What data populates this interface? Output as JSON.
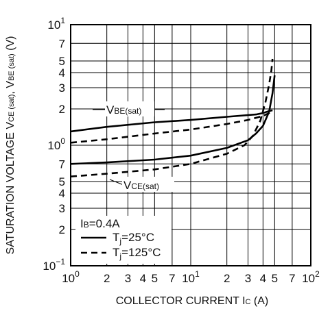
{
  "chart_data": {
    "type": "line",
    "title": "",
    "xlabel": "COLLECTOR CURRENT IC (A)",
    "ylabel": "SATURATION VOLTAGE VCE (sat), VBE (sat) (V)",
    "xscale": "log",
    "yscale": "log",
    "xlim": [
      1,
      100
    ],
    "ylim": [
      0.1,
      10
    ],
    "grid": true,
    "x_ticks": [
      {
        "v": 1,
        "base": "10",
        "exp": "0"
      },
      {
        "v": 2,
        "base": "2",
        "exp": ""
      },
      {
        "v": 3,
        "base": "3",
        "exp": ""
      },
      {
        "v": 4,
        "base": "4",
        "exp": ""
      },
      {
        "v": 5,
        "base": "5",
        "exp": ""
      },
      {
        "v": 7,
        "base": "7",
        "exp": ""
      },
      {
        "v": 10,
        "base": "10",
        "exp": "1"
      },
      {
        "v": 20,
        "base": "2",
        "exp": ""
      },
      {
        "v": 30,
        "base": "3",
        "exp": ""
      },
      {
        "v": 40,
        "base": "4",
        "exp": ""
      },
      {
        "v": 50,
        "base": "5",
        "exp": ""
      },
      {
        "v": 70,
        "base": "7",
        "exp": ""
      },
      {
        "v": 100,
        "base": "10",
        "exp": "2"
      }
    ],
    "y_ticks": [
      {
        "v": 10,
        "base": "10",
        "exp": "1"
      },
      {
        "v": 7,
        "base": "7",
        "exp": ""
      },
      {
        "v": 5,
        "base": "5",
        "exp": ""
      },
      {
        "v": 4,
        "base": "4",
        "exp": ""
      },
      {
        "v": 3,
        "base": "3",
        "exp": ""
      },
      {
        "v": 2,
        "base": "2",
        "exp": ""
      },
      {
        "v": 1,
        "base": "10",
        "exp": "0"
      },
      {
        "v": 0.7,
        "base": "7",
        "exp": ""
      },
      {
        "v": 0.5,
        "base": "5",
        "exp": ""
      },
      {
        "v": 0.4,
        "base": "4",
        "exp": ""
      },
      {
        "v": 0.3,
        "base": "3",
        "exp": ""
      },
      {
        "v": 0.2,
        "base": "2",
        "exp": ""
      },
      {
        "v": 0.1,
        "base": "10",
        "exp": "−1"
      }
    ],
    "series": [
      {
        "group": "VBE(sat)",
        "condition": "Tj=25°C",
        "style": "solid",
        "points": [
          [
            1,
            1.3
          ],
          [
            2,
            1.42
          ],
          [
            5,
            1.55
          ],
          [
            10,
            1.62
          ],
          [
            20,
            1.72
          ],
          [
            35,
            1.8
          ],
          [
            40,
            1.85
          ],
          [
            45,
            1.92
          ],
          [
            48,
            1.95
          ]
        ]
      },
      {
        "group": "VBE(sat)",
        "condition": "Tj=125°C",
        "style": "dashed",
        "points": [
          [
            1,
            1.05
          ],
          [
            2,
            1.12
          ],
          [
            5,
            1.25
          ],
          [
            10,
            1.35
          ],
          [
            20,
            1.5
          ],
          [
            30,
            1.62
          ],
          [
            40,
            1.75
          ],
          [
            45,
            1.85
          ],
          [
            48,
            1.95
          ]
        ]
      },
      {
        "group": "VCE(sat)",
        "condition": "Tj=25°C",
        "style": "solid",
        "points": [
          [
            1,
            0.7
          ],
          [
            2,
            0.72
          ],
          [
            5,
            0.76
          ],
          [
            10,
            0.82
          ],
          [
            20,
            0.95
          ],
          [
            30,
            1.1
          ],
          [
            35,
            1.25
          ],
          [
            40,
            1.45
          ],
          [
            45,
            1.9
          ],
          [
            48,
            2.7
          ],
          [
            50,
            3.8
          ]
        ]
      },
      {
        "group": "VCE(sat)",
        "condition": "Tj=125°C",
        "style": "dashed",
        "points": [
          [
            1,
            0.55
          ],
          [
            2,
            0.58
          ],
          [
            5,
            0.63
          ],
          [
            10,
            0.7
          ],
          [
            20,
            0.85
          ],
          [
            28,
            1.0
          ],
          [
            33,
            1.2
          ],
          [
            38,
            1.6
          ],
          [
            42,
            2.3
          ],
          [
            45,
            3.2
          ],
          [
            47,
            4.2
          ],
          [
            48,
            5.2
          ]
        ]
      }
    ],
    "annotations": {
      "vbe_label": {
        "base": "V",
        "sub": "BE(sat)"
      },
      "vce_label": {
        "base": "V",
        "sub": "CE(sat)"
      },
      "ib_label": {
        "base": "I",
        "sub": "B",
        "rest": "=0.4A"
      }
    },
    "legend": {
      "placement": "bottom-left",
      "entries": [
        {
          "style": "solid",
          "base": "T",
          "sub": "j",
          "rest": "=25°C"
        },
        {
          "style": "dashed",
          "base": "T",
          "sub": "j",
          "rest": "=125°C"
        }
      ]
    },
    "xlabel_parts": {
      "text": "COLLECTOR CURRENT",
      "sym_base": "I",
      "sym_sub": "C",
      "unit": "(A)"
    },
    "ylabel_parts": {
      "text": "SATURATION VOLTAGE",
      "v1_base": "V",
      "v1_sub": "CE (sat)",
      "v2_base": "V",
      "v2_sub": "BE (sat)",
      "unit": "(V)"
    }
  }
}
